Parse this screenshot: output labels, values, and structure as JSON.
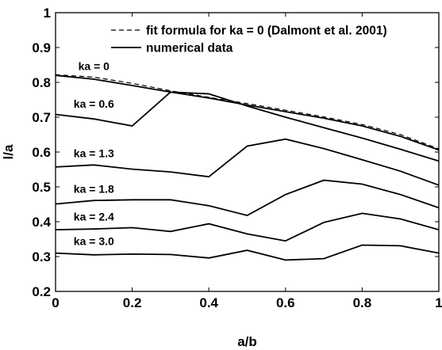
{
  "chart_data": {
    "type": "line",
    "xlabel": "a/b",
    "ylabel": "l/a",
    "xlim": [
      0,
      1
    ],
    "ylim": [
      0.2,
      1
    ],
    "grid": false,
    "legend_position": "top-right",
    "x_ticks": [
      "0",
      "0.2",
      "0.4",
      "0.6",
      "0.8",
      "1"
    ],
    "y_ticks": [
      "0.2",
      "0.3",
      "0.4",
      "0.5",
      "0.6",
      "0.7",
      "0.8",
      "0.9",
      "1"
    ],
    "legend": [
      {
        "label": "fit formula for ka = 0 (Dalmont et al. 2001)",
        "style": "dashed"
      },
      {
        "label": "numerical data",
        "style": "solid"
      }
    ],
    "x": [
      0,
      0.1,
      0.2,
      0.3,
      0.4,
      0.5,
      0.6,
      0.7,
      0.8,
      0.9,
      1.0
    ],
    "series": [
      {
        "name": "fit formula for ka = 0 (Dalmont et al. 2001)",
        "style": "dashed",
        "values": [
          0.822,
          0.815,
          0.797,
          0.776,
          0.757,
          0.739,
          0.72,
          0.701,
          0.679,
          0.65,
          0.609
        ]
      },
      {
        "style": "solid",
        "label": "ka = 0",
        "values": [
          0.82,
          0.809,
          0.791,
          0.772,
          0.755,
          0.735,
          0.716,
          0.697,
          0.675,
          0.645,
          0.606
        ]
      },
      {
        "style": "solid",
        "label": "ka = 0.6",
        "values": [
          0.708,
          0.695,
          0.675,
          0.772,
          0.767,
          0.732,
          0.7,
          0.67,
          0.64,
          0.608,
          0.574
        ]
      },
      {
        "style": "solid",
        "label": "ka = 1.3",
        "values": [
          0.557,
          0.563,
          0.551,
          0.543,
          0.529,
          0.617,
          0.637,
          0.61,
          0.578,
          0.545,
          0.505
        ]
      },
      {
        "style": "solid",
        "label": "ka = 1.8",
        "values": [
          0.451,
          0.461,
          0.463,
          0.463,
          0.446,
          0.418,
          0.478,
          0.519,
          0.508,
          0.478,
          0.44
        ]
      },
      {
        "style": "solid",
        "label": "ka = 2.4",
        "values": [
          0.377,
          0.379,
          0.383,
          0.372,
          0.394,
          0.365,
          0.345,
          0.398,
          0.424,
          0.408,
          0.377
        ]
      },
      {
        "style": "solid",
        "label": "ka = 3.0",
        "values": [
          0.31,
          0.305,
          0.307,
          0.306,
          0.296,
          0.318,
          0.29,
          0.294,
          0.333,
          0.331,
          0.31
        ]
      }
    ]
  }
}
